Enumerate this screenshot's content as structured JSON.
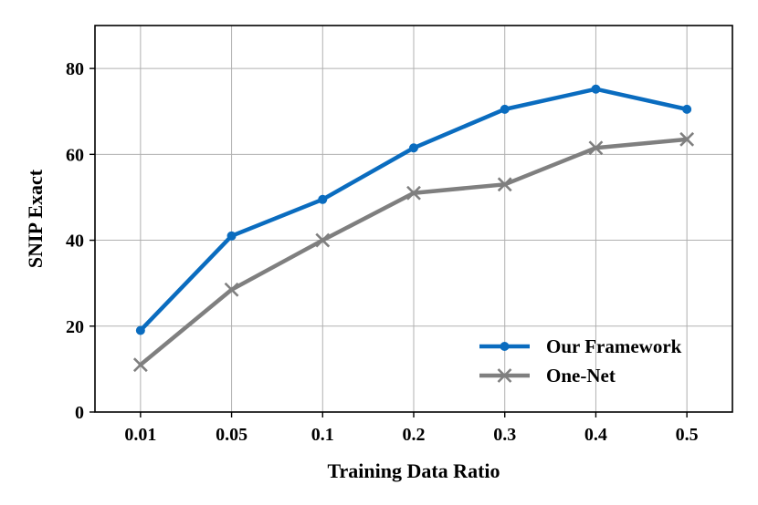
{
  "chart_data": {
    "type": "line",
    "categories": [
      "0.01",
      "0.05",
      "0.1",
      "0.2",
      "0.3",
      "0.4",
      "0.5"
    ],
    "xlabel": "Training Data Ratio",
    "ylabel": "SNIP Exact",
    "ylim": [
      0,
      90
    ],
    "yticks": [
      0,
      20,
      40,
      60,
      80
    ],
    "grid": true,
    "legend_position": "bottom-right",
    "series": [
      {
        "name": "Our Framework",
        "color": "#0a6cbf",
        "marker": "circle",
        "values": [
          19.0,
          41.0,
          49.5,
          61.5,
          70.5,
          75.2,
          70.5
        ]
      },
      {
        "name": "One-Net",
        "color": "#7f7f7f",
        "marker": "x",
        "values": [
          11.0,
          28.5,
          40.0,
          51.0,
          53.0,
          61.5,
          63.5
        ]
      }
    ]
  }
}
